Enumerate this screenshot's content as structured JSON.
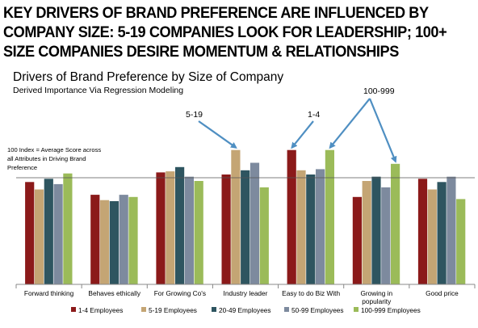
{
  "headline": {
    "line1": "KEY DRIVERS OF BRAND PREFERENCE ARE INFLUENCED BY",
    "line2": "COMPANY SIZE: 5-19 COMPANIES LOOK FOR LEADERSHIP; 100+",
    "line3": "SIZE COMPANIES DESIRE MOMENTUM & RELATIONSHIPS"
  },
  "chart_data": {
    "type": "bar",
    "title": "Drivers of Brand Preference by Size of Company",
    "subtitle": "Derived Importance Via Regression Modeling",
    "index_note": "100 Index = Average Score across all Attributes in Driving Brand Preference",
    "reference_line": 100,
    "ylim": [
      0,
      130
    ],
    "grid": false,
    "legend_position": "bottom",
    "categories": [
      "Forward thinking",
      "Behaves ethically",
      "For Growing Co's",
      "Industry leader",
      "Easy to do Biz With",
      "Growing in popularity",
      "Good price"
    ],
    "series": [
      {
        "name": "1-4 Employees",
        "color": "#8b1a1a",
        "values": [
          96,
          84,
          105,
          103,
          126,
          82,
          99
        ]
      },
      {
        "name": "5-19 Employees",
        "color": "#c4a574",
        "values": [
          89,
          79,
          106,
          126,
          107,
          97,
          89
        ]
      },
      {
        "name": "20-49 Employees",
        "color": "#2e5560",
        "values": [
          99,
          78,
          110,
          107,
          103,
          101,
          96
        ]
      },
      {
        "name": "50-99 Employees",
        "color": "#7d8a9e",
        "values": [
          94,
          84,
          101,
          114,
          108,
          91,
          101
        ]
      },
      {
        "name": "100-999 Employees",
        "color": "#9bbb59",
        "values": [
          104,
          82,
          97,
          91,
          126,
          113,
          80
        ]
      }
    ],
    "annotations": [
      {
        "text": "5-19",
        "targets": [
          [
            3,
            1
          ]
        ]
      },
      {
        "text": "1-4",
        "targets": [
          [
            4,
            0
          ]
        ]
      },
      {
        "text": "100-999",
        "targets": [
          [
            4,
            4
          ],
          [
            5,
            4
          ]
        ]
      }
    ]
  },
  "colors": {
    "arrow": "#4f8fc2",
    "axis": "#888888",
    "reference": "#555555"
  }
}
